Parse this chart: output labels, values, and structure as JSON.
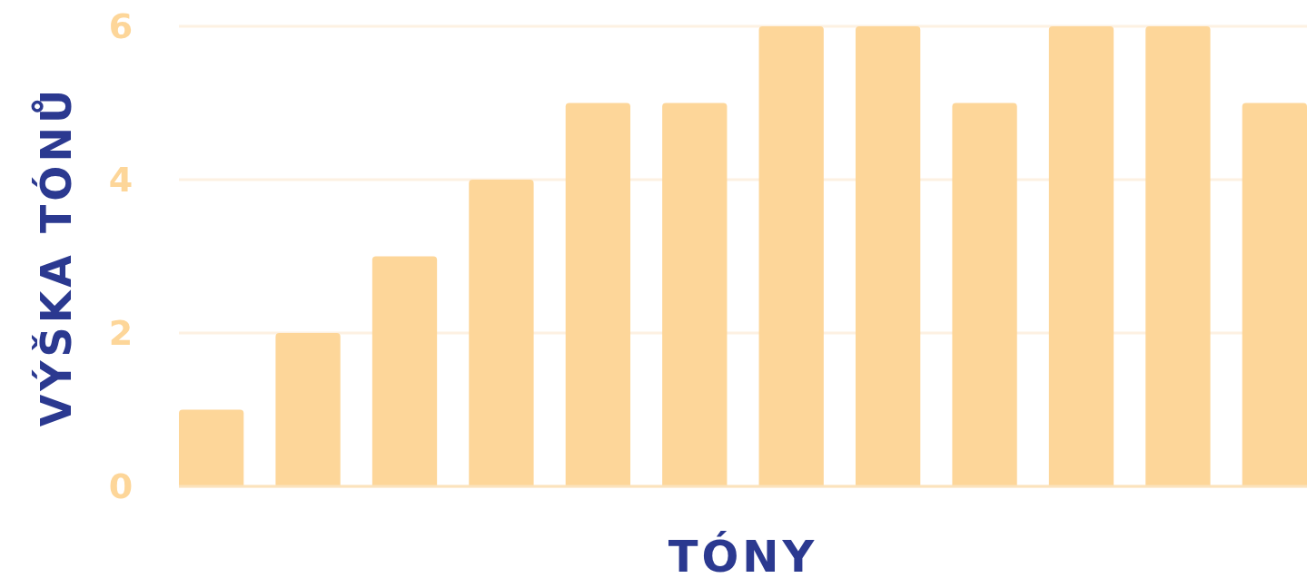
{
  "chart_data": {
    "type": "bar",
    "xlabel": "TÓNY",
    "ylabel": "VÝŠKA TÓNŮ",
    "categories": [
      null,
      null,
      null,
      null,
      null,
      null,
      null,
      null,
      null,
      null,
      null,
      null
    ],
    "values": [
      1,
      2,
      3,
      4,
      5,
      5,
      6,
      6,
      5,
      6,
      6,
      5
    ],
    "color": "#fdd699",
    "ylim": [
      0,
      6
    ],
    "yticks": [
      0,
      2,
      4,
      6
    ],
    "grid": "y"
  }
}
